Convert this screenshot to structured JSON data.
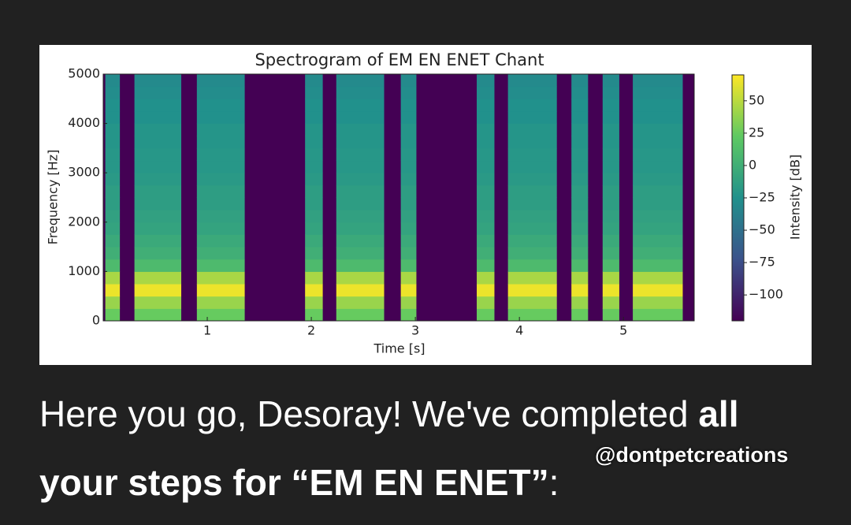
{
  "chart_data": {
    "type": "spectrogram",
    "title": "Spectrogram of EM EN ENET Chant",
    "xlabel": "Time [s]",
    "ylabel": "Frequency [Hz]",
    "colorbar_label": "Intensity [dB]",
    "colormap": "viridis",
    "xlim": [
      0,
      5.68
    ],
    "xticks": [
      1,
      2,
      3,
      4,
      5
    ],
    "ylim": [
      0,
      5000
    ],
    "yticks": [
      0,
      1000,
      2000,
      3000,
      4000,
      5000
    ],
    "zlim": [
      -120,
      70
    ],
    "zticks": [
      50,
      25,
      0,
      {
        "value": -25,
        "label": "−25"
      },
      {
        "value": -50,
        "label": "−50"
      },
      {
        "value": -75,
        "label": "−75"
      },
      {
        "value": -100,
        "label": "−100"
      }
    ],
    "background": -120,
    "segments": [
      [
        0.02,
        0.16
      ],
      [
        0.3,
        0.75
      ],
      [
        0.9,
        1.36
      ],
      [
        1.94,
        2.11
      ],
      [
        2.24,
        2.7
      ],
      [
        2.86,
        3.01
      ],
      [
        3.59,
        3.76
      ],
      [
        3.89,
        4.36
      ],
      [
        4.5,
        4.66
      ],
      [
        4.8,
        4.96
      ],
      [
        5.09,
        5.57
      ]
    ],
    "frequency_bins": [
      0,
      250,
      500,
      750,
      1000,
      1250,
      1500,
      1750,
      2000,
      2250,
      2500,
      2750,
      3000,
      3250,
      3500,
      3750,
      4000,
      4250,
      4500,
      4750,
      5000
    ],
    "intensity": [
      25,
      40,
      65,
      45,
      10,
      0,
      -5,
      -10,
      -12,
      -15,
      -15,
      -18,
      -20,
      -20,
      -22,
      -22,
      -25,
      -25,
      -28,
      -30
    ]
  },
  "message": {
    "line1": "Here you go, Desoray! We've completed ",
    "line1_bold": "all",
    "line2_bold": "your steps for “EM EN ENET”",
    "line2": ":"
  },
  "watermark": "@dontpetcreations"
}
